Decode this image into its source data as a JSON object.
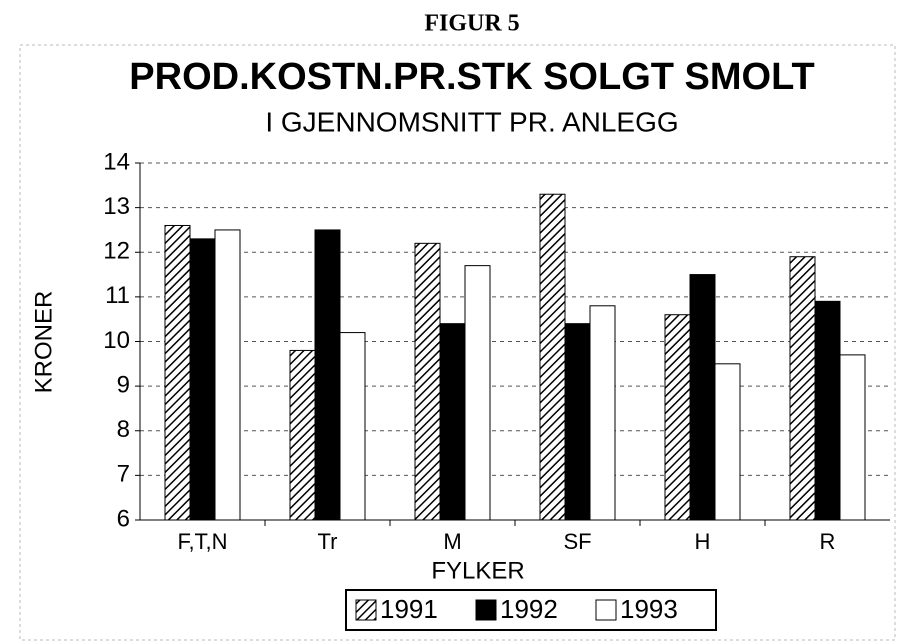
{
  "chart_data": {
    "type": "bar",
    "header": "FIGUR 5",
    "title": "PROD.KOSTN.PR.STK SOLGT SMOLT",
    "subtitle": "I GJENNOMSNITT PR. ANLEGG",
    "x_label": "FYLKER",
    "y_label": "KRONER",
    "categories": [
      "F,T,N",
      "Tr",
      "M",
      "SF",
      "H",
      "R"
    ],
    "series": [
      {
        "name": "1991",
        "color": "#000000",
        "pattern": "hatch",
        "values": [
          12.6,
          9.8,
          12.2,
          13.3,
          10.6,
          11.9
        ]
      },
      {
        "name": "1992",
        "color": "#000000",
        "values": [
          12.3,
          12.5,
          10.4,
          10.4,
          11.5,
          10.9
        ]
      },
      {
        "name": "1993",
        "color": "#ffffff",
        "values": [
          12.5,
          10.2,
          11.7,
          10.8,
          9.5,
          9.7
        ]
      }
    ],
    "ylim": [
      6,
      14
    ],
    "yticks": [
      6,
      7,
      8,
      9,
      10,
      11,
      12,
      13,
      14
    ],
    "grid": true,
    "legend": "bottom"
  }
}
